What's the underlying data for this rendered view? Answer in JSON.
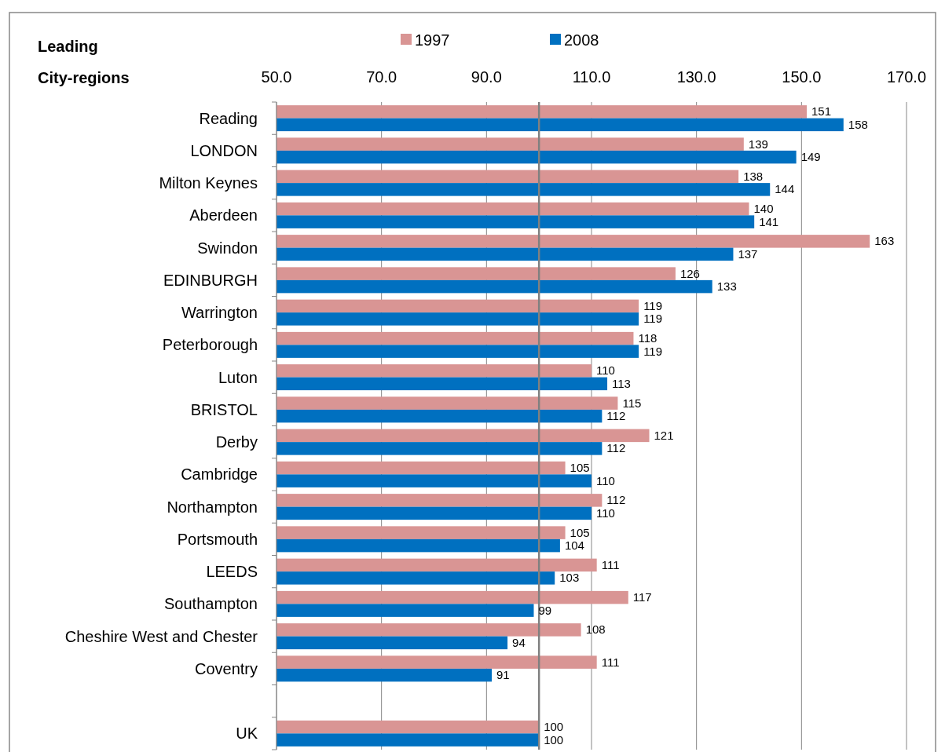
{
  "chart_data": {
    "type": "bar",
    "orientation": "horizontal",
    "ylabel": "Leading City-regions",
    "categories": [
      "Reading",
      "LONDON",
      "Milton Keynes",
      "Aberdeen",
      "Swindon",
      "EDINBURGH",
      "Warrington",
      "Peterborough",
      "Luton",
      "BRISTOL",
      "Derby",
      "Cambridge",
      "Northampton",
      "Portsmouth",
      "LEEDS",
      "Southampton",
      "Cheshire West and Chester",
      "Coventry",
      null,
      "UK"
    ],
    "series": [
      {
        "name": "1997",
        "color": "#d99594",
        "values": [
          151,
          139,
          138,
          140,
          163,
          126,
          119,
          118,
          110,
          115,
          121,
          105,
          112,
          105,
          111,
          117,
          108,
          111,
          null,
          100
        ]
      },
      {
        "name": "2008",
        "color": "#0070c0",
        "values": [
          158,
          149,
          144,
          141,
          137,
          133,
          119,
          119,
          113,
          112,
          112,
          110,
          110,
          104,
          103,
          99,
          94,
          91,
          null,
          100
        ]
      }
    ],
    "xlim": [
      50,
      170
    ],
    "xticks": [
      {
        "value": 50,
        "label": "50.0"
      },
      {
        "value": 70,
        "label": "70.0"
      },
      {
        "value": 90,
        "label": "90.0"
      },
      {
        "value": 110,
        "label": "110.0"
      },
      {
        "value": 130,
        "label": "130.0"
      },
      {
        "value": 150,
        "label": "150.0"
      },
      {
        "value": 170,
        "label": "170.0"
      }
    ],
    "ref_lines": [
      {
        "axis": "x",
        "value": 100,
        "color": "#808080"
      }
    ],
    "grid": "x",
    "legend": "top",
    "data_labels": true
  }
}
